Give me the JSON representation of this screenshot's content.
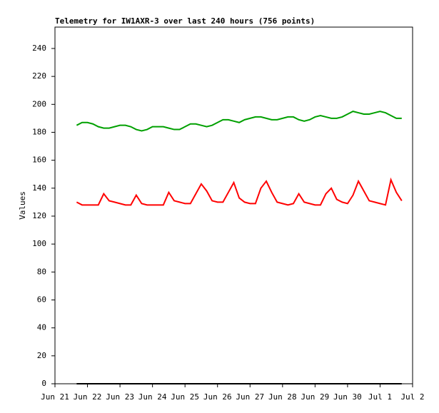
{
  "chart_data": {
    "type": "line",
    "title": "Telemetry for IW1AXR-3 over last 240 hours (756 points)",
    "y_label": "Values",
    "x": [
      16,
      20,
      24,
      28,
      32,
      36,
      40,
      44,
      48,
      52,
      56,
      60,
      64,
      68,
      72,
      76,
      80,
      84,
      88,
      92,
      96,
      100,
      104,
      108,
      112,
      116,
      120,
      124,
      128,
      132,
      136,
      140,
      144,
      148,
      152,
      156,
      160,
      164,
      168,
      172,
      176,
      180,
      184,
      188,
      192,
      196,
      200,
      204,
      208,
      212,
      216,
      220,
      224,
      228,
      232,
      236,
      240,
      244,
      248,
      252,
      256
    ],
    "series": [
      {
        "color": "#00a000",
        "values": [
          185,
          187,
          187,
          186,
          184,
          183,
          183,
          184,
          185,
          185,
          184,
          182,
          181,
          182,
          184,
          184,
          184,
          183,
          182,
          182,
          184,
          186,
          186,
          185,
          184,
          185,
          187,
          189,
          189,
          188,
          187,
          189,
          190,
          191,
          191,
          190,
          189,
          189,
          190,
          191,
          191,
          189,
          188,
          189,
          191,
          192,
          191,
          190,
          190,
          191,
          193,
          195,
          194,
          193,
          193,
          194,
          195,
          194,
          192,
          190,
          190
        ]
      },
      {
        "color": "#ff0000",
        "values": [
          130,
          128,
          128,
          128,
          128,
          136,
          131,
          130,
          129,
          128,
          128,
          135,
          129,
          128,
          128,
          128,
          128,
          137,
          131,
          130,
          129,
          129,
          136,
          143,
          138,
          131,
          130,
          130,
          137,
          144,
          133,
          130,
          129,
          129,
          140,
          145,
          137,
          130,
          129,
          128,
          129,
          136,
          130,
          129,
          128,
          128,
          136,
          140,
          132,
          130,
          129,
          135,
          145,
          138,
          131,
          130,
          129,
          128,
          146,
          137,
          131
        ]
      },
      {
        "color": "#000000",
        "values": [
          0,
          0,
          0,
          0,
          0,
          0,
          0,
          0,
          0,
          0,
          0,
          0,
          0,
          0,
          0,
          0,
          0,
          0,
          0,
          0,
          0,
          0,
          0,
          0,
          0,
          0,
          0,
          0,
          0,
          0,
          0,
          0,
          0,
          0,
          0,
          0,
          0,
          0,
          0,
          0,
          0,
          0,
          0,
          0,
          0,
          0,
          0,
          0,
          0,
          0,
          0,
          0,
          0,
          0,
          0,
          0,
          0,
          0,
          0,
          0,
          0
        ]
      }
    ],
    "xlim": [
      0,
      264
    ],
    "xticks": [
      {
        "value": 0,
        "label": "Jun 21"
      },
      {
        "value": 24,
        "label": "Jun 22"
      },
      {
        "value": 48,
        "label": "Jun 23"
      },
      {
        "value": 72,
        "label": "Jun 24"
      },
      {
        "value": 96,
        "label": "Jun 25"
      },
      {
        "value": 120,
        "label": "Jun 26"
      },
      {
        "value": 144,
        "label": "Jun 27"
      },
      {
        "value": 168,
        "label": "Jun 28"
      },
      {
        "value": 192,
        "label": "Jun 29"
      },
      {
        "value": 216,
        "label": "Jun 30"
      },
      {
        "value": 240,
        "label": "Jul 1"
      },
      {
        "value": 264,
        "label": "Jul 2"
      }
    ],
    "ylim": [
      0,
      255.3
    ],
    "yticks": [
      0,
      20,
      40,
      60,
      80,
      100,
      120,
      140,
      160,
      180,
      200,
      220,
      240
    ]
  }
}
